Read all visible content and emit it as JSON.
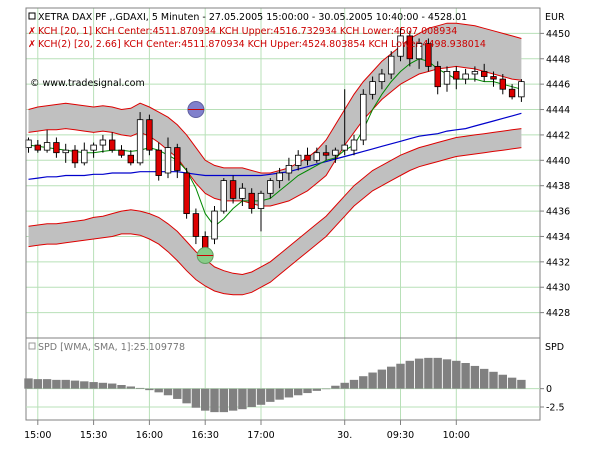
{
  "header": {
    "title": "XETRA DAX PF ,.GDAXI, 5 Minuten - 27.05.2005 15:00:00 - 30.05.2005 10:40:00 - 4528.01",
    "kch1": "KCH [20, 1] KCH Center:4511.870934 KCH Upper:4516.732934 KCH Lower:4507.008934",
    "kch2": "KCH(2) [20, 2.66] KCH Center:4511.870934 KCH Upper:4524.803854 KCH Lower:4498.938014",
    "currency": "EUR",
    "watermark": "© www.tradesignal.com",
    "spd_label": "SPD [WMA, SMA, 1]:25.109778",
    "spd_axis_label": "SPD"
  },
  "colors": {
    "outer_band": "#c0c0c0",
    "band_line": "#dd0000",
    "center_line": "#0000cc",
    "short_ma": "#008800",
    "bull_candle": "#ffffff",
    "bear_candle": "#dd0000",
    "histogram": "#808080",
    "marker_high": "#8080cc",
    "marker_low": "#88cc88"
  },
  "chart_data": {
    "type": "candlestick",
    "ylim": [
      4426,
      4452
    ],
    "y_ticks": [
      "4428",
      "4430",
      "4432",
      "4434",
      "4436",
      "4438",
      "4440",
      "4442",
      "4444",
      "4446",
      "4448",
      "4450"
    ],
    "x_ticks": [
      {
        "label": "15:00",
        "bar": 1
      },
      {
        "label": "15:30",
        "bar": 7
      },
      {
        "label": "16:00",
        "bar": 13
      },
      {
        "label": "16:30",
        "bar": 19
      },
      {
        "label": "17:00",
        "bar": 25
      },
      {
        "label": "30.",
        "bar": 34
      },
      {
        "label": "09:30",
        "bar": 40
      },
      {
        "label": "10:00",
        "bar": 46
      }
    ],
    "candles": [
      {
        "o": 4441.0,
        "h": 4441.8,
        "l": 4440.6,
        "c": 4441.6
      },
      {
        "o": 4441.2,
        "h": 4441.6,
        "l": 4440.6,
        "c": 4440.8
      },
      {
        "o": 4440.8,
        "h": 4442.4,
        "l": 4440.6,
        "c": 4441.4
      },
      {
        "o": 4441.4,
        "h": 4441.8,
        "l": 4440.2,
        "c": 4440.6
      },
      {
        "o": 4440.6,
        "h": 4441.3,
        "l": 4439.8,
        "c": 4440.8
      },
      {
        "o": 4440.8,
        "h": 4441.2,
        "l": 4439.4,
        "c": 4439.8
      },
      {
        "o": 4439.8,
        "h": 4441.4,
        "l": 4439.6,
        "c": 4440.8
      },
      {
        "o": 4440.8,
        "h": 4441.4,
        "l": 4440.2,
        "c": 4441.2
      },
      {
        "o": 4441.2,
        "h": 4442.0,
        "l": 4440.6,
        "c": 4441.6
      },
      {
        "o": 4441.6,
        "h": 4442.2,
        "l": 4440.6,
        "c": 4440.8
      },
      {
        "o": 4440.8,
        "h": 4441.2,
        "l": 4440.2,
        "c": 4440.4
      },
      {
        "o": 4440.4,
        "h": 4440.8,
        "l": 4439.6,
        "c": 4439.8
      },
      {
        "o": 4439.8,
        "h": 4443.8,
        "l": 4439.6,
        "c": 4443.2
      },
      {
        "o": 4443.2,
        "h": 4443.6,
        "l": 4440.4,
        "c": 4440.8
      },
      {
        "o": 4440.8,
        "h": 4441.4,
        "l": 4438.4,
        "c": 4438.8
      },
      {
        "o": 4439.0,
        "h": 4441.8,
        "l": 4438.6,
        "c": 4441.0
      },
      {
        "o": 4441.0,
        "h": 4441.3,
        "l": 4438.6,
        "c": 4439.2
      },
      {
        "o": 4439.0,
        "h": 4439.4,
        "l": 4435.4,
        "c": 4435.8
      },
      {
        "o": 4435.8,
        "h": 4436.2,
        "l": 4433.4,
        "c": 4434.0
      },
      {
        "o": 4434.0,
        "h": 4434.4,
        "l": 4432.2,
        "c": 4432.8
      },
      {
        "o": 4433.8,
        "h": 4436.4,
        "l": 4433.4,
        "c": 4436.0
      },
      {
        "o": 4436.0,
        "h": 4438.6,
        "l": 4435.8,
        "c": 4438.4
      },
      {
        "o": 4438.4,
        "h": 4438.8,
        "l": 4436.6,
        "c": 4437.0
      },
      {
        "o": 4437.0,
        "h": 4438.2,
        "l": 4436.4,
        "c": 4437.8
      },
      {
        "o": 4437.4,
        "h": 4437.8,
        "l": 4435.8,
        "c": 4436.2
      },
      {
        "o": 4436.2,
        "h": 4437.6,
        "l": 4434.4,
        "c": 4437.4
      },
      {
        "o": 4437.4,
        "h": 4438.6,
        "l": 4437.0,
        "c": 4438.4
      },
      {
        "o": 4438.4,
        "h": 4439.4,
        "l": 4437.8,
        "c": 4439.0
      },
      {
        "o": 4439.0,
        "h": 4440.2,
        "l": 4438.4,
        "c": 4439.6
      },
      {
        "o": 4439.6,
        "h": 4440.8,
        "l": 4439.2,
        "c": 4440.4
      },
      {
        "o": 4440.4,
        "h": 4441.0,
        "l": 4439.6,
        "c": 4440.0
      },
      {
        "o": 4440.0,
        "h": 4441.0,
        "l": 4439.8,
        "c": 4440.6
      },
      {
        "o": 4440.6,
        "h": 4441.2,
        "l": 4440.0,
        "c": 4440.4
      },
      {
        "o": 4440.4,
        "h": 4441.0,
        "l": 4439.8,
        "c": 4440.8
      },
      {
        "o": 4440.8,
        "h": 4445.6,
        "l": 4440.4,
        "c": 4441.2
      },
      {
        "o": 4440.8,
        "h": 4442.0,
        "l": 4440.4,
        "c": 4441.6
      },
      {
        "o": 4441.6,
        "h": 4445.6,
        "l": 4441.2,
        "c": 4445.2
      },
      {
        "o": 4445.2,
        "h": 4446.6,
        "l": 4444.8,
        "c": 4446.2
      },
      {
        "o": 4446.2,
        "h": 4447.2,
        "l": 4445.6,
        "c": 4446.8
      },
      {
        "o": 4446.8,
        "h": 4448.6,
        "l": 4446.4,
        "c": 4448.2
      },
      {
        "o": 4448.2,
        "h": 4450.4,
        "l": 4447.8,
        "c": 4449.8
      },
      {
        "o": 4449.8,
        "h": 4450.2,
        "l": 4447.4,
        "c": 4448.0
      },
      {
        "o": 4448.0,
        "h": 4449.6,
        "l": 4447.2,
        "c": 4449.2
      },
      {
        "o": 4449.2,
        "h": 4449.6,
        "l": 4447.0,
        "c": 4447.4
      },
      {
        "o": 4447.4,
        "h": 4447.8,
        "l": 4445.2,
        "c": 4445.8
      },
      {
        "o": 4446.0,
        "h": 4447.4,
        "l": 4445.4,
        "c": 4447.0
      },
      {
        "o": 4447.0,
        "h": 4447.4,
        "l": 4445.6,
        "c": 4446.4
      },
      {
        "o": 4446.4,
        "h": 4447.2,
        "l": 4446.0,
        "c": 4446.8
      },
      {
        "o": 4446.8,
        "h": 4447.4,
        "l": 4446.2,
        "c": 4447.0
      },
      {
        "o": 4447.0,
        "h": 4447.6,
        "l": 4446.2,
        "c": 4446.6
      },
      {
        "o": 4446.6,
        "h": 4447.0,
        "l": 4445.8,
        "c": 4446.4
      },
      {
        "o": 4446.4,
        "h": 4446.8,
        "l": 4445.2,
        "c": 4445.6
      },
      {
        "o": 4445.6,
        "h": 4446.0,
        "l": 4444.8,
        "c": 4445.0
      },
      {
        "o": 4445.0,
        "h": 4446.4,
        "l": 4444.6,
        "c": 4446.2
      }
    ],
    "series": [
      {
        "key": "kch2_upper",
        "values": [
          4444.0,
          4444.2,
          4444.3,
          4444.4,
          4444.5,
          4444.4,
          4444.3,
          4444.2,
          4444.3,
          4444.2,
          4444.0,
          4444.1,
          4444.5,
          4444.2,
          4443.8,
          4443.4,
          4442.8,
          4442.0,
          4441.0,
          4440.0,
          4439.6,
          4439.4,
          4439.4,
          4439.4,
          4439.2,
          4439.0,
          4439.0,
          4439.2,
          4439.4,
          4439.8,
          4440.2,
          4440.8,
          4441.6,
          4442.8,
          4444.0,
          4445.2,
          4446.2,
          4447.0,
          4447.8,
          4448.4,
          4449.0,
          4449.6,
          4450.0,
          4450.4,
          4450.6,
          4450.8,
          4450.8,
          4450.7,
          4450.6,
          4450.4,
          4450.2,
          4450.0,
          4449.8,
          4449.6
        ]
      },
      {
        "key": "kch1_upper",
        "values": [
          4442.2,
          4442.3,
          4442.4,
          4442.4,
          4442.5,
          4442.4,
          4442.3,
          4442.2,
          4442.3,
          4442.2,
          4442.0,
          4441.9,
          4442.2,
          4441.9,
          4441.4,
          4440.8,
          4440.2,
          4439.2,
          4438.2,
          4437.4,
          4437.0,
          4436.8,
          4436.8,
          4436.8,
          4436.6,
          4436.4,
          4436.4,
          4436.6,
          4436.8,
          4437.2,
          4437.6,
          4438.2,
          4438.8,
          4440.0,
          4441.2,
          4442.2,
          4443.2,
          4444.0,
          4444.8,
          4445.4,
          4446.0,
          4446.4,
          4446.8,
          4447.0,
          4447.2,
          4447.3,
          4447.4,
          4447.3,
          4447.2,
          4447.0,
          4446.8,
          4446.6,
          4446.4,
          4446.3
        ]
      },
      {
        "key": "center",
        "values": [
          4438.5,
          4438.6,
          4438.7,
          4438.7,
          4438.8,
          4438.8,
          4438.8,
          4438.9,
          4438.9,
          4439.0,
          4439.0,
          4439.0,
          4439.1,
          4439.1,
          4439.1,
          4439.1,
          4439.1,
          4439.0,
          4438.9,
          4438.8,
          4438.8,
          4438.8,
          4438.8,
          4438.8,
          4438.8,
          4438.8,
          4438.9,
          4439.0,
          4439.1,
          4439.3,
          4439.5,
          4439.7,
          4439.9,
          4440.1,
          4440.3,
          4440.5,
          4440.7,
          4440.9,
          4441.1,
          4441.3,
          4441.5,
          4441.7,
          4441.9,
          4442.0,
          4442.1,
          4442.3,
          4442.4,
          4442.5,
          4442.7,
          4442.9,
          4443.1,
          4443.3,
          4443.5,
          4443.7
        ]
      },
      {
        "key": "kch1_lower",
        "values": [
          4434.8,
          4434.9,
          4435.0,
          4435.0,
          4435.1,
          4435.2,
          4435.3,
          4435.5,
          4435.6,
          4435.8,
          4436.0,
          4436.1,
          4436.0,
          4435.8,
          4435.5,
          4435.0,
          4434.4,
          4433.6,
          4432.8,
          4432.2,
          4431.6,
          4431.3,
          4431.1,
          4431.0,
          4431.2,
          4431.6,
          4432.0,
          4432.6,
          4433.2,
          4433.8,
          4434.4,
          4435.0,
          4435.6,
          4436.4,
          4437.2,
          4438.0,
          4438.6,
          4439.2,
          4439.6,
          4440.0,
          4440.4,
          4440.7,
          4441.0,
          4441.2,
          4441.4,
          4441.6,
          4441.8,
          4441.9,
          4442.0,
          4442.1,
          4442.2,
          4442.3,
          4442.4,
          4442.5
        ]
      },
      {
        "key": "kch2_lower",
        "values": [
          4433.2,
          4433.3,
          4433.4,
          4433.4,
          4433.5,
          4433.6,
          4433.7,
          4433.8,
          4433.9,
          4434.0,
          4434.2,
          4434.2,
          4434.1,
          4433.8,
          4433.4,
          4432.8,
          4432.1,
          4431.3,
          4430.6,
          4430.1,
          4429.7,
          4429.5,
          4429.4,
          4429.4,
          4429.6,
          4430.0,
          4430.4,
          4431.0,
          4431.6,
          4432.2,
          4432.8,
          4433.4,
          4434.0,
          4434.8,
          4435.6,
          4436.4,
          4437.0,
          4437.6,
          4438.0,
          4438.4,
          4438.8,
          4439.2,
          4439.5,
          4439.7,
          4439.9,
          4440.1,
          4440.3,
          4440.4,
          4440.5,
          4440.6,
          4440.7,
          4440.8,
          4440.9,
          4441.0
        ]
      },
      {
        "key": "short_ma",
        "values": [
          4441.2,
          4441.1,
          4441.0,
          4440.9,
          4440.8,
          4440.7,
          4440.6,
          4440.6,
          4440.7,
          4440.8,
          4440.8,
          4440.7,
          4440.8,
          4441.0,
          4440.8,
          4440.4,
          4440.0,
          4439.2,
          4437.8,
          4435.8,
          4434.8,
          4435.4,
          4436.2,
          4436.8,
          4436.8,
          4436.8,
          4437.0,
          4437.6,
          4438.2,
          4438.8,
          4439.2,
          4439.6,
          4440.0,
          4440.2,
          4440.8,
          4441.2,
          4442.4,
          4444.0,
          4445.2,
          4446.2,
          4447.0,
          4447.6,
          4448.0,
          4447.8,
          4447.2,
          4446.8,
          4446.4,
          4446.4,
          4446.4,
          4446.2,
          4446.2,
          4446.0,
          4445.8,
          4445.6
        ]
      }
    ],
    "markers": [
      {
        "type": "high",
        "bar": 18,
        "y": 4444.0
      },
      {
        "type": "low",
        "bar": 19,
        "y": 4432.5
      }
    ],
    "spd": {
      "ylim": [
        -4,
        5
      ],
      "y_ticks": [
        0,
        -2.5
      ],
      "values": [
        1.4,
        1.3,
        1.3,
        1.2,
        1.2,
        1.1,
        1.0,
        0.9,
        0.8,
        0.7,
        0.5,
        0.3,
        0.1,
        -0.2,
        -0.5,
        -0.9,
        -1.4,
        -2.0,
        -2.6,
        -3.0,
        -3.2,
        -3.2,
        -3.0,
        -2.8,
        -2.5,
        -2.2,
        -1.8,
        -1.5,
        -1.2,
        -0.9,
        -0.6,
        -0.3,
        0.0,
        0.4,
        0.8,
        1.2,
        1.7,
        2.2,
        2.6,
        3.0,
        3.4,
        3.8,
        4.1,
        4.2,
        4.2,
        4.0,
        3.8,
        3.5,
        3.1,
        2.7,
        2.3,
        1.9,
        1.5,
        1.2
      ]
    }
  }
}
